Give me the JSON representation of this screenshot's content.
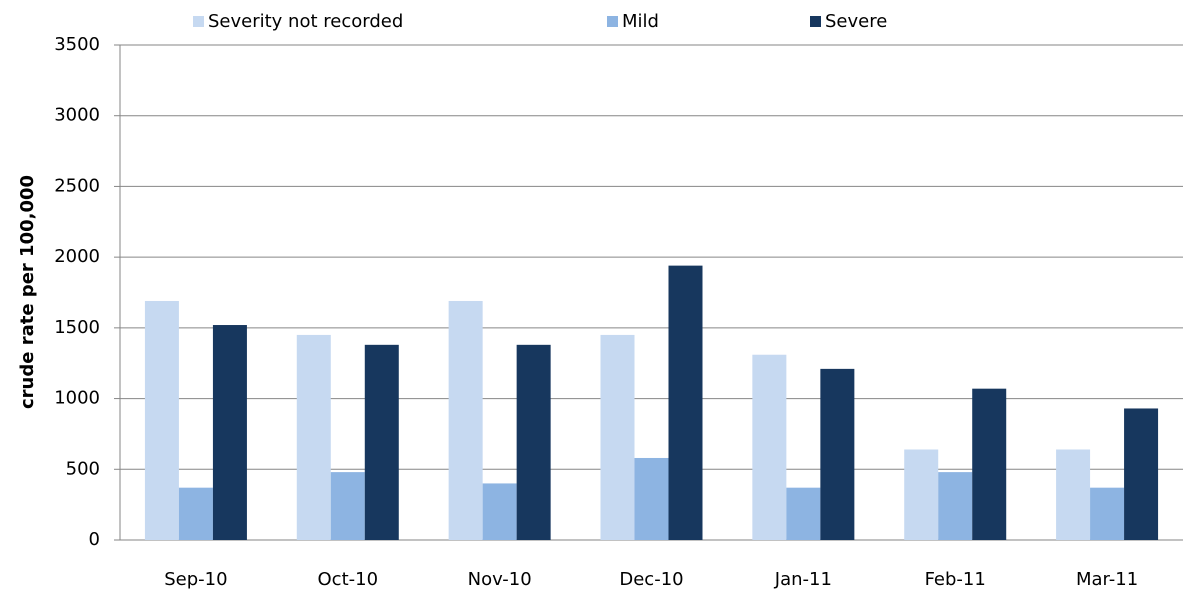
{
  "chart_data": {
    "type": "bar",
    "y_label": "crude rate per 100,000",
    "categories": [
      "Sep-10",
      "Oct-10",
      "Nov-10",
      "Dec-10",
      "Jan-11",
      "Feb-11",
      "Mar-11"
    ],
    "series": [
      {
        "name": "Severity not recorded",
        "color": "#c6d9f1",
        "values": [
          1690,
          1450,
          1690,
          1450,
          1310,
          640,
          640
        ]
      },
      {
        "name": "Mild",
        "color": "#8db4e2",
        "values": [
          370,
          480,
          400,
          580,
          370,
          480,
          370
        ]
      },
      {
        "name": "Severe",
        "color": "#17375e",
        "values": [
          1520,
          1380,
          1380,
          1940,
          1210,
          1070,
          930
        ]
      }
    ],
    "ylim": [
      0,
      3500
    ],
    "yticks": [
      0,
      500,
      1000,
      1500,
      2000,
      2500,
      3000,
      3500
    ],
    "grid": true,
    "legend": "top"
  }
}
